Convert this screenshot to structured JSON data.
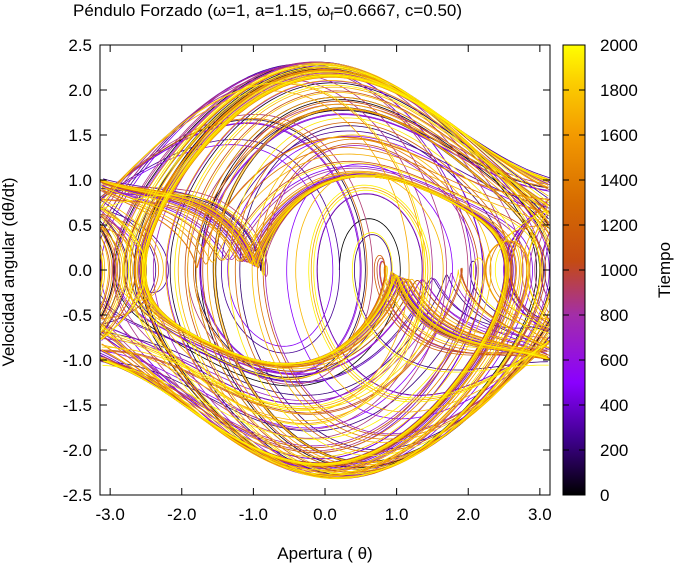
{
  "chart_data": {
    "type": "scatter",
    "title": "Péndulo Forzado (ω=1, a=1.15,  ω",
    "title_sub": "f",
    "title_tail": "=0.6667, c=0.50)",
    "xlabel": "Apertura ( θ)",
    "ylabel": "Velocidad angular (dθ/dt)",
    "xlim": [
      -3.1416,
      3.1416
    ],
    "ylim": [
      -2.5,
      2.5
    ],
    "xticks": [
      "-3.0",
      "-2.0",
      "-1.0",
      "0.0",
      "1.0",
      "2.0",
      "3.0"
    ],
    "xtick_values": [
      -3,
      -2,
      -1,
      0,
      1,
      2,
      3
    ],
    "yticks": [
      "2.5",
      "2.0",
      "1.5",
      "1.0",
      "0.5",
      "0.0",
      "-0.5",
      "-1.0",
      "-1.5",
      "-2.0",
      "-2.5"
    ],
    "ytick_values": [
      2.5,
      2.0,
      1.5,
      1.0,
      0.5,
      0.0,
      -0.5,
      -1.0,
      -1.5,
      -2.0,
      -2.5
    ],
    "colorbar": {
      "label": "Tiempo",
      "range": [
        0,
        2000
      ],
      "ticks": [
        "2000",
        "1800",
        "1600",
        "1400",
        "1200",
        "1000",
        "800",
        "600",
        "400",
        "200",
        "0"
      ],
      "tick_values": [
        2000,
        1800,
        1600,
        1400,
        1200,
        1000,
        800,
        600,
        400,
        200,
        0
      ],
      "colors": [
        "#000000",
        "#3c0088",
        "#8a00ff",
        "#a32ea8",
        "#c44b12",
        "#d66b00",
        "#f39a00",
        "#fcd000",
        "#ffff00"
      ]
    },
    "series": [
      {
        "omega": 1.0,
        "a": 1.15,
        "omega_f": 0.6667,
        "c": 0.5,
        "t_range": [
          0,
          2000
        ],
        "theta0": 0.2,
        "v0": 0.0
      }
    ],
    "grid": false,
    "legend": "none"
  }
}
